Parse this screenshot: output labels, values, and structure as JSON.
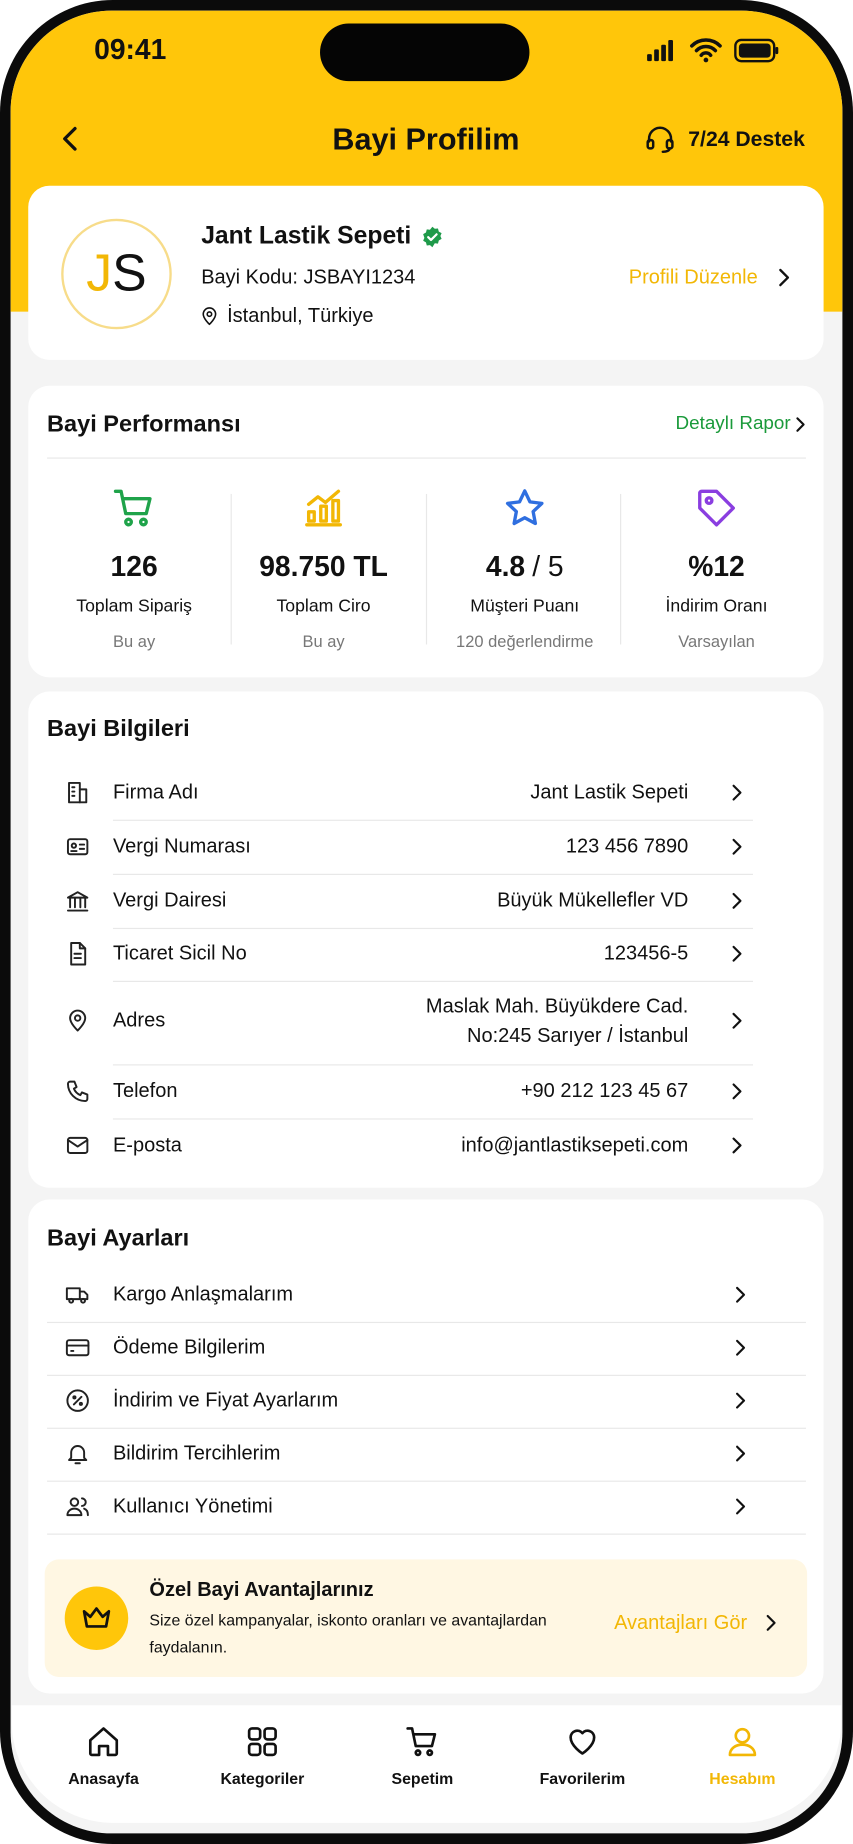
{
  "status_bar": {
    "time": "09:41"
  },
  "header": {
    "title": "Bayi Profilim",
    "support": "7/24 Destek"
  },
  "profile": {
    "initials": [
      "J",
      "S"
    ],
    "name": "Jant Lastik Sepeti",
    "dealer_code": "Bayi Kodu: JSBAYI1234",
    "location": "İstanbul, Türkiye",
    "edit_link": "Profili Düzenle"
  },
  "performance": {
    "title": "Bayi Performansı",
    "report_link": "Detaylı Rapor",
    "stats": [
      {
        "value": "126",
        "label": "Toplam Sipariş",
        "note": "Bu ay"
      },
      {
        "value": "98.750 TL",
        "label": "Toplam Ciro",
        "note": "Bu ay"
      },
      {
        "value": "4.8",
        "value_suffix": "/ 5",
        "label": "Müşteri Puanı",
        "note": "120 değerlendirme"
      },
      {
        "value": "%12",
        "label": "İndirim Oranı",
        "note": "Varsayılan"
      }
    ]
  },
  "dealer_info": {
    "title": "Bayi Bilgileri",
    "rows": [
      {
        "label": "Firma Adı",
        "value": [
          "Jant Lastik Sepeti"
        ]
      },
      {
        "label": "Vergi Numarası",
        "value": [
          "123 456 7890"
        ]
      },
      {
        "label": "Vergi Dairesi",
        "value": [
          "Büyük Mükellefler VD"
        ]
      },
      {
        "label": "Ticaret Sicil No",
        "value": [
          "123456-5"
        ]
      },
      {
        "label": "Adres",
        "value": [
          "Maslak Mah. Büyükdere Cad.",
          "No:245 Sarıyer / İstanbul"
        ]
      },
      {
        "label": "Telefon",
        "value": [
          "+90 212 123 45 67"
        ]
      },
      {
        "label": "E-posta",
        "value": [
          "info@jantlastiksepeti.com"
        ]
      }
    ]
  },
  "dealer_settings": {
    "title": "Bayi Ayarları",
    "rows": [
      "Kargo Anlaşmalarım",
      "Ödeme Bilgilerim",
      "İndirim ve Fiyat Ayarlarım",
      "Bildirim Tercihlerim",
      "Kullanıcı Yönetimi"
    ]
  },
  "promo": {
    "title": "Özel Bayi Avantajlarınız",
    "description": [
      "Size özel kampanyalar, iskonto oranları ve avantajlardan",
      "faydalanın."
    ],
    "link": "Avantajları Gör"
  },
  "bottom_nav": {
    "active": 4,
    "tabs": [
      "Anasayfa",
      "Kategoriler",
      "Sepetim",
      "Favorilerim",
      "Hesabım"
    ]
  }
}
